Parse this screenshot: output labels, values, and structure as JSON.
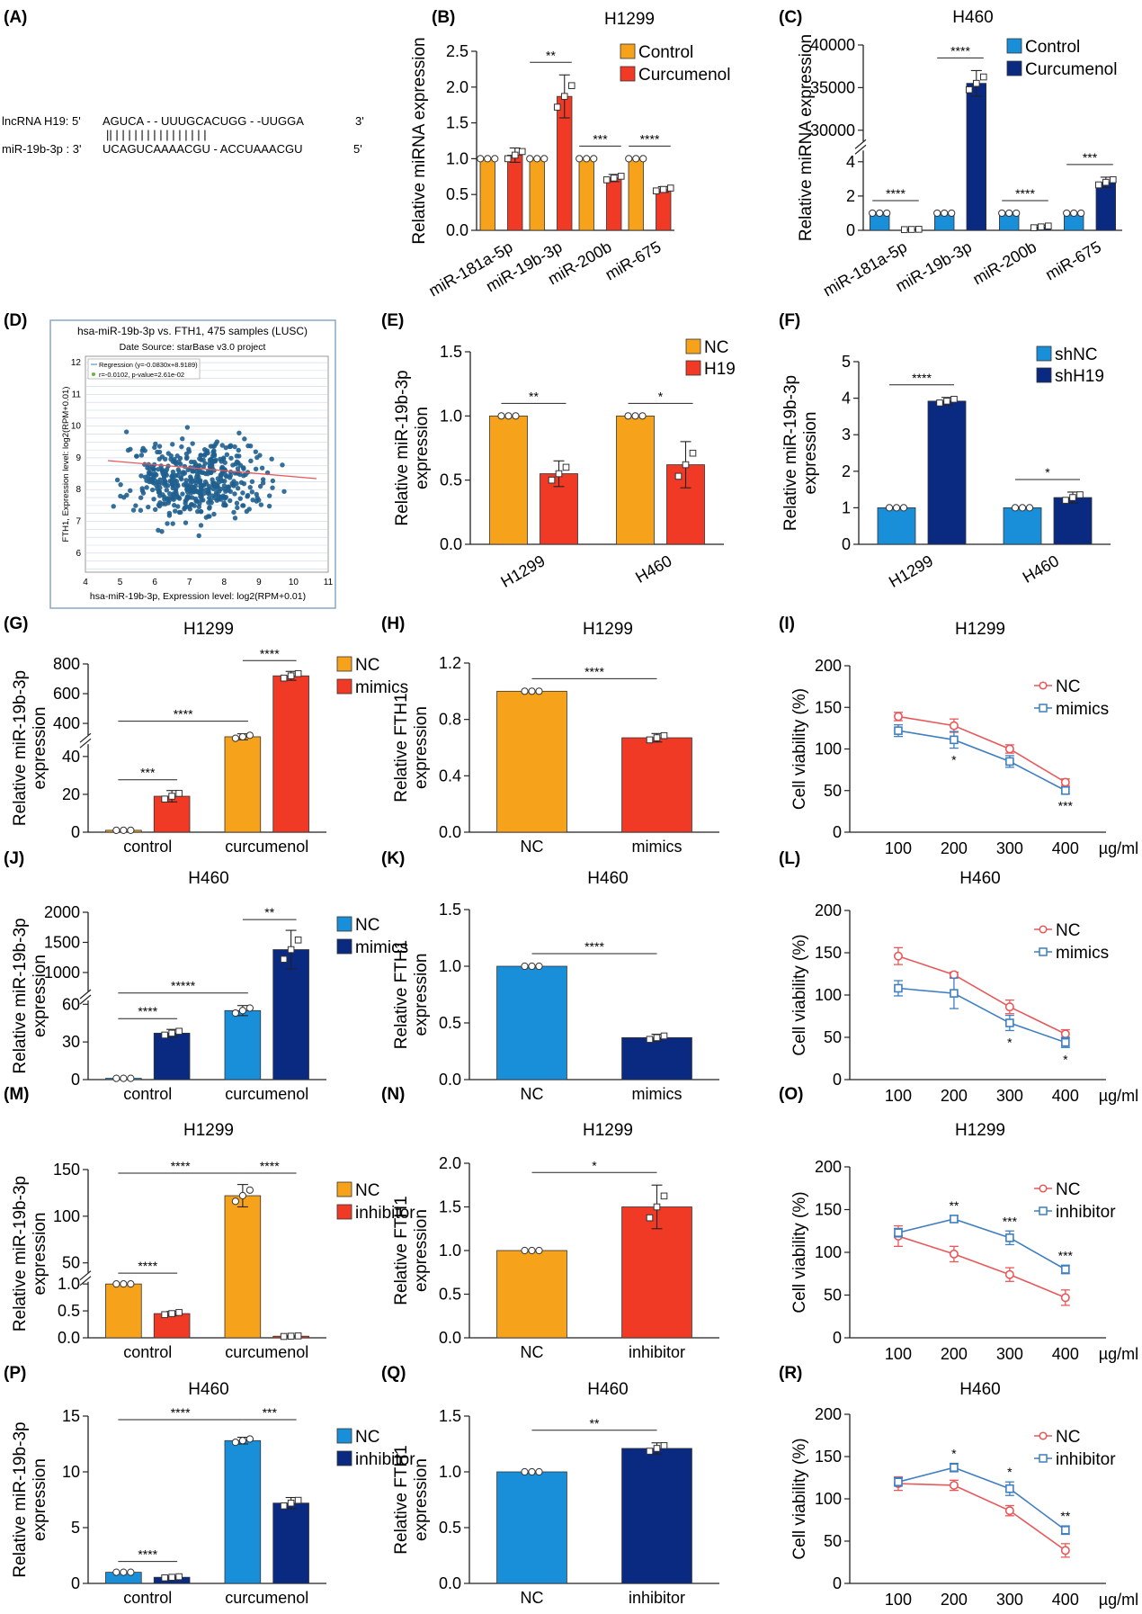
{
  "colors": {
    "control_orange": "#f7a21b",
    "treat_red": "#f03a25",
    "nc_lightblue": "#1a8fd9",
    "treat_navy": "#0a2a82",
    "line_red": "#e8585a",
    "line_blue": "#3f7fc0",
    "scatter": "#1f5f8f"
  },
  "panel_a": {
    "label": "(A)",
    "row1_label": "lncRNA H19: 5'",
    "row1_seq": "AGUCA - - UUUGCACUGG - -UUGGA",
    "row1_end": "3'",
    "pairs": "|| | | |       |  | | | | | |         | | | | |",
    "row2_label": "miR-19b-3p : 3'",
    "row2_seq": "UCAGUCAAAACGU - ACCUAAACGU",
    "row2_end": "5'"
  },
  "panel_d": {
    "label": "(D)",
    "title": "hsa-miR-19b-3p vs. FTH1, 475 samples (LUSC)",
    "subtitle": "Date Source: starBase v3.0 project",
    "legend1": "Regression (y=-0.0830x+8.9189)",
    "legend2": "r=-0.0102, p-value=2.61e-02",
    "ylabel": "FTH1, Expression level: log2(RPM+0.01)",
    "xlabel": "hsa-miR-19b-3p, Expression level: log2(RPM+0.01)",
    "xticks": [
      "4",
      "5",
      "6",
      "7",
      "8",
      "9",
      "10",
      "11"
    ],
    "yticks": [
      "6",
      "7",
      "8",
      "9",
      "10",
      "11",
      "12"
    ]
  },
  "chart_data": [
    {
      "id": "B",
      "label": "(B)",
      "type": "bar",
      "title": "H1299",
      "ylabel": "Relative miRNA expression",
      "categories": [
        "miR-181a-5p",
        "miR-19b-3p",
        "miR-200b",
        "miR-675"
      ],
      "series": [
        {
          "name": "Control",
          "color": "#f7a21b",
          "values": [
            1.0,
            1.0,
            1.0,
            1.0
          ],
          "errors": [
            0,
            0,
            0,
            0
          ]
        },
        {
          "name": "Curcumenol",
          "color": "#f03a25",
          "values": [
            1.05,
            1.87,
            0.73,
            0.57
          ],
          "errors": [
            0.1,
            0.3,
            0.05,
            0.04
          ]
        }
      ],
      "ylim": [
        0,
        2.5
      ],
      "yticks": [
        "0.0",
        "0.5",
        "1.0",
        "1.5",
        "2.0",
        "2.5"
      ],
      "significance": [
        "",
        "**",
        "***",
        "****"
      ]
    },
    {
      "id": "C",
      "label": "(C)",
      "type": "bar",
      "title": "H460",
      "ylabel": "Relative miRNA expression",
      "categories": [
        "miR-181a-5p",
        "miR-19b-3p",
        "miR-200b",
        "miR-675"
      ],
      "series": [
        {
          "name": "Control",
          "color": "#1a8fd9",
          "values": [
            1.0,
            1.0,
            1.0,
            1.0
          ],
          "errors": [
            0,
            0,
            0,
            0
          ]
        },
        {
          "name": "Curcumenol",
          "color": "#0a2a82",
          "values": [
            0.05,
            35500,
            0.2,
            2.8
          ],
          "errors": [
            0.02,
            1500,
            0.1,
            0.3
          ]
        }
      ],
      "y_broken": true,
      "yticks": [
        "0",
        "2",
        "4",
        "30000",
        "35000",
        "40000"
      ],
      "significance": [
        "****",
        "****",
        "****",
        "***"
      ]
    },
    {
      "id": "E",
      "label": "(E)",
      "type": "bar",
      "title": "",
      "ylabel": "Relative miR-19b-3p expression",
      "categories": [
        "H1299",
        "H460"
      ],
      "series": [
        {
          "name": "NC",
          "color": "#f7a21b",
          "values": [
            1.0,
            1.0
          ],
          "errors": [
            0,
            0
          ]
        },
        {
          "name": "H19",
          "color": "#f03a25",
          "values": [
            0.55,
            0.62
          ],
          "errors": [
            0.1,
            0.18
          ]
        }
      ],
      "ylim": [
        0,
        1.5
      ],
      "yticks": [
        "0.0",
        "0.5",
        "1.0",
        "1.5"
      ],
      "significance": [
        "**",
        "*"
      ]
    },
    {
      "id": "F",
      "label": "(F)",
      "type": "bar",
      "title": "",
      "ylabel": "Relative miR-19b-3p expression",
      "categories": [
        "H1299",
        "H460"
      ],
      "series": [
        {
          "name": "shNC",
          "color": "#1a8fd9",
          "values": [
            1.0,
            1.0
          ],
          "errors": [
            0,
            0
          ]
        },
        {
          "name": "shH19",
          "color": "#0a2a82",
          "values": [
            3.92,
            1.28
          ],
          "errors": [
            0.1,
            0.15
          ]
        }
      ],
      "ylim": [
        0,
        5
      ],
      "yticks": [
        "0",
        "1",
        "2",
        "3",
        "4",
        "5"
      ],
      "significance": [
        "****",
        "*"
      ]
    },
    {
      "id": "G",
      "label": "(G)",
      "type": "bar",
      "title": "H1299",
      "ylabel": "Relative miR-19b-3p expression",
      "categories": [
        "control",
        "curcumenol"
      ],
      "series": [
        {
          "name": "NC",
          "color": "#f7a21b",
          "values": [
            1.0,
            310
          ],
          "errors": [
            0,
            20
          ]
        },
        {
          "name": "mimics",
          "color": "#f03a25",
          "values": [
            19,
            720
          ],
          "errors": [
            3,
            30
          ]
        }
      ],
      "y_broken": true,
      "yticks": [
        "0",
        "20",
        "40",
        "400",
        "600",
        "800"
      ],
      "significance": [
        "***",
        "****",
        "****"
      ]
    },
    {
      "id": "H",
      "label": "(H)",
      "type": "bar",
      "title": "H1299",
      "ylabel": "Relative FTH1 expression",
      "categories": [
        "NC",
        "mimics"
      ],
      "series": [
        {
          "name": "NC",
          "color": "#f7a21b",
          "values": [
            1.0,
            0
          ],
          "errors": [
            0,
            0
          ]
        },
        {
          "name": "mimics",
          "color": "#f03a25",
          "values": [
            0,
            0.67
          ],
          "errors": [
            0,
            0.03
          ]
        }
      ],
      "ylim": [
        0,
        1.2
      ],
      "yticks": [
        "0.0",
        "0.4",
        "0.8",
        "1.2"
      ],
      "significance": [
        "****"
      ]
    },
    {
      "id": "I",
      "label": "(I)",
      "type": "line",
      "title": "H1299",
      "ylabel": "Cell viability (%)",
      "x": [
        "100",
        "200",
        "300",
        "400"
      ],
      "xunit": "µg/ml",
      "series": [
        {
          "name": "NC",
          "color": "#e8585a",
          "marker": "circle",
          "values": [
            139,
            128,
            100,
            60
          ],
          "errors": [
            5,
            8,
            5,
            4
          ]
        },
        {
          "name": "mimics",
          "color": "#3f7fc0",
          "marker": "square",
          "values": [
            122,
            111,
            85,
            50
          ],
          "errors": [
            7,
            10,
            7,
            4
          ]
        }
      ],
      "ylim": [
        0,
        200
      ],
      "yticks": [
        "0",
        "50",
        "100",
        "150",
        "200"
      ],
      "significance": [
        "",
        "*",
        "",
        "***"
      ]
    },
    {
      "id": "J",
      "label": "(J)",
      "type": "bar",
      "title": "H460",
      "ylabel": "Relative miR-19b-3p expression",
      "categories": [
        "control",
        "curcumenol"
      ],
      "series": [
        {
          "name": "NC",
          "color": "#1a8fd9",
          "values": [
            1.0,
            55
          ],
          "errors": [
            0,
            4
          ]
        },
        {
          "name": "mimics",
          "color": "#0a2a82",
          "values": [
            37,
            1380
          ],
          "errors": [
            3,
            320
          ]
        }
      ],
      "y_broken": true,
      "yticks": [
        "0",
        "30",
        "60",
        "1000",
        "1500",
        "2000"
      ],
      "significance": [
        "****",
        "*****",
        "**"
      ]
    },
    {
      "id": "K",
      "label": "(K)",
      "type": "bar",
      "title": "H460",
      "ylabel": "Relative FTH1 expression",
      "categories": [
        "NC",
        "mimics"
      ],
      "series": [
        {
          "name": "NC",
          "color": "#1a8fd9",
          "values": [
            1.0,
            0
          ],
          "errors": [
            0,
            0
          ]
        },
        {
          "name": "mimics",
          "color": "#0a2a82",
          "values": [
            0,
            0.37
          ],
          "errors": [
            0,
            0.03
          ]
        }
      ],
      "ylim": [
        0,
        1.5
      ],
      "yticks": [
        "0.0",
        "0.5",
        "1.0",
        "1.5"
      ],
      "significance": [
        "****"
      ]
    },
    {
      "id": "L",
      "label": "(L)",
      "type": "line",
      "title": "H460",
      "ylabel": "Cell viability (%)",
      "x": [
        "100",
        "200",
        "300",
        "400"
      ],
      "xunit": "µg/ml",
      "series": [
        {
          "name": "NC",
          "color": "#e8585a",
          "marker": "circle",
          "values": [
            146,
            124,
            86,
            54
          ],
          "errors": [
            10,
            3,
            8,
            5
          ]
        },
        {
          "name": "mimics",
          "color": "#3f7fc0",
          "marker": "square",
          "values": [
            108,
            102,
            67,
            44
          ],
          "errors": [
            9,
            18,
            9,
            6
          ]
        }
      ],
      "ylim": [
        0,
        200
      ],
      "yticks": [
        "0",
        "50",
        "100",
        "150",
        "200"
      ],
      "significance": [
        "",
        "",
        "*",
        "*"
      ]
    },
    {
      "id": "M",
      "label": "(M)",
      "type": "bar",
      "title": "H1299",
      "ylabel": "Relative miR-19b-3p expression",
      "categories": [
        "control",
        "curcumenol"
      ],
      "series": [
        {
          "name": "NC",
          "color": "#f7a21b",
          "values": [
            1.0,
            122
          ],
          "errors": [
            0,
            12
          ]
        },
        {
          "name": "inhibitor",
          "color": "#f03a25",
          "values": [
            0.45,
            0.03
          ],
          "errors": [
            0.04,
            0.01
          ]
        }
      ],
      "y_broken": true,
      "yticks": [
        "0.0",
        "0.5",
        "1.0",
        "50",
        "100",
        "150"
      ],
      "significance": [
        "****",
        "****",
        "****"
      ]
    },
    {
      "id": "N",
      "label": "(N)",
      "type": "bar",
      "title": "H1299",
      "ylabel": "Relative FTH1 expression",
      "categories": [
        "NC",
        "inhibitor"
      ],
      "series": [
        {
          "name": "NC",
          "color": "#f7a21b",
          "values": [
            1.0,
            0
          ],
          "errors": [
            0,
            0
          ]
        },
        {
          "name": "inhibitor",
          "color": "#f03a25",
          "values": [
            0,
            1.5
          ],
          "errors": [
            0,
            0.25
          ]
        }
      ],
      "ylim": [
        0,
        2.0
      ],
      "yticks": [
        "0.0",
        "0.5",
        "1.0",
        "1.5",
        "2.0"
      ],
      "significance": [
        "*"
      ]
    },
    {
      "id": "O",
      "label": "(O)",
      "type": "line",
      "title": "H1299",
      "ylabel": "Cell viability (%)",
      "x": [
        "100",
        "200",
        "300",
        "400"
      ],
      "xunit": "µg/ml",
      "series": [
        {
          "name": "NC",
          "color": "#e8585a",
          "marker": "circle",
          "values": [
            119,
            98,
            74,
            47
          ],
          "errors": [
            12,
            9,
            8,
            9
          ]
        },
        {
          "name": "inhibitor",
          "color": "#3f7fc0",
          "marker": "square",
          "values": [
            123,
            139,
            117,
            80
          ],
          "errors": [
            5,
            4,
            8,
            5
          ]
        }
      ],
      "ylim": [
        0,
        200
      ],
      "yticks": [
        "0",
        "50",
        "100",
        "150",
        "200"
      ],
      "significance": [
        "",
        "**",
        "***",
        "***"
      ]
    },
    {
      "id": "P",
      "label": "(P)",
      "type": "bar",
      "title": "H460",
      "ylabel": "Relative miR-19b-3p expression",
      "categories": [
        "control",
        "curcumenol"
      ],
      "series": [
        {
          "name": "NC",
          "color": "#1a8fd9",
          "values": [
            1.0,
            12.8
          ],
          "errors": [
            0,
            0.3
          ]
        },
        {
          "name": "inhibitor",
          "color": "#0a2a82",
          "values": [
            0.55,
            7.2
          ],
          "errors": [
            0.1,
            0.5
          ]
        }
      ],
      "ylim": [
        0,
        15
      ],
      "yticks": [
        "0",
        "5",
        "10",
        "15"
      ],
      "significance": [
        "****",
        "****",
        "***"
      ]
    },
    {
      "id": "Q",
      "label": "(Q)",
      "type": "bar",
      "title": "H460",
      "ylabel": "Relative FTH1 expression",
      "categories": [
        "NC",
        "inhibitor"
      ],
      "series": [
        {
          "name": "NC",
          "color": "#1a8fd9",
          "values": [
            1.0,
            0
          ],
          "errors": [
            0,
            0
          ]
        },
        {
          "name": "inhibitor",
          "color": "#0a2a82",
          "values": [
            0,
            1.21
          ],
          "errors": [
            0,
            0.05
          ]
        }
      ],
      "ylim": [
        0,
        1.5
      ],
      "yticks": [
        "0.0",
        "0.5",
        "1.0",
        "1.5"
      ],
      "significance": [
        "**"
      ]
    },
    {
      "id": "R",
      "label": "(R)",
      "type": "line",
      "title": "H460",
      "ylabel": "Cell viability (%)",
      "x": [
        "100",
        "200",
        "300",
        "400"
      ],
      "xunit": "µg/ml",
      "series": [
        {
          "name": "NC",
          "color": "#e8585a",
          "marker": "circle",
          "values": [
            118,
            116,
            86,
            39
          ],
          "errors": [
            8,
            6,
            6,
            8
          ]
        },
        {
          "name": "inhibitor",
          "color": "#3f7fc0",
          "marker": "square",
          "values": [
            120,
            137,
            112,
            63
          ],
          "errors": [
            5,
            5,
            8,
            5
          ]
        }
      ],
      "ylim": [
        0,
        200
      ],
      "yticks": [
        "0",
        "50",
        "100",
        "150",
        "200"
      ],
      "significance": [
        "",
        "*",
        "*",
        "**"
      ]
    }
  ]
}
